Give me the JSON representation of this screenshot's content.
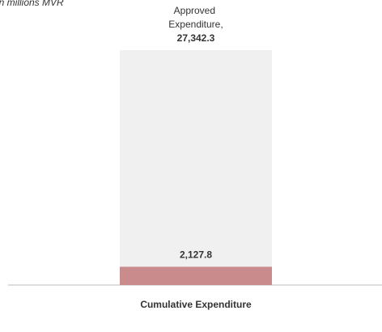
{
  "chart_data": {
    "type": "overlay-bar",
    "annotation": "in millions MVR",
    "categories": [
      "Cumulative Expenditure"
    ],
    "series": [
      {
        "name": "Approved Expenditure,",
        "color": "#f0f0f0",
        "values": [
          27342.3
        ],
        "value_labels": [
          "27,342.3"
        ]
      },
      {
        "color": "#c98b8b",
        "values": [
          2127.8
        ],
        "value_labels": [
          "2,127.8"
        ]
      }
    ]
  }
}
